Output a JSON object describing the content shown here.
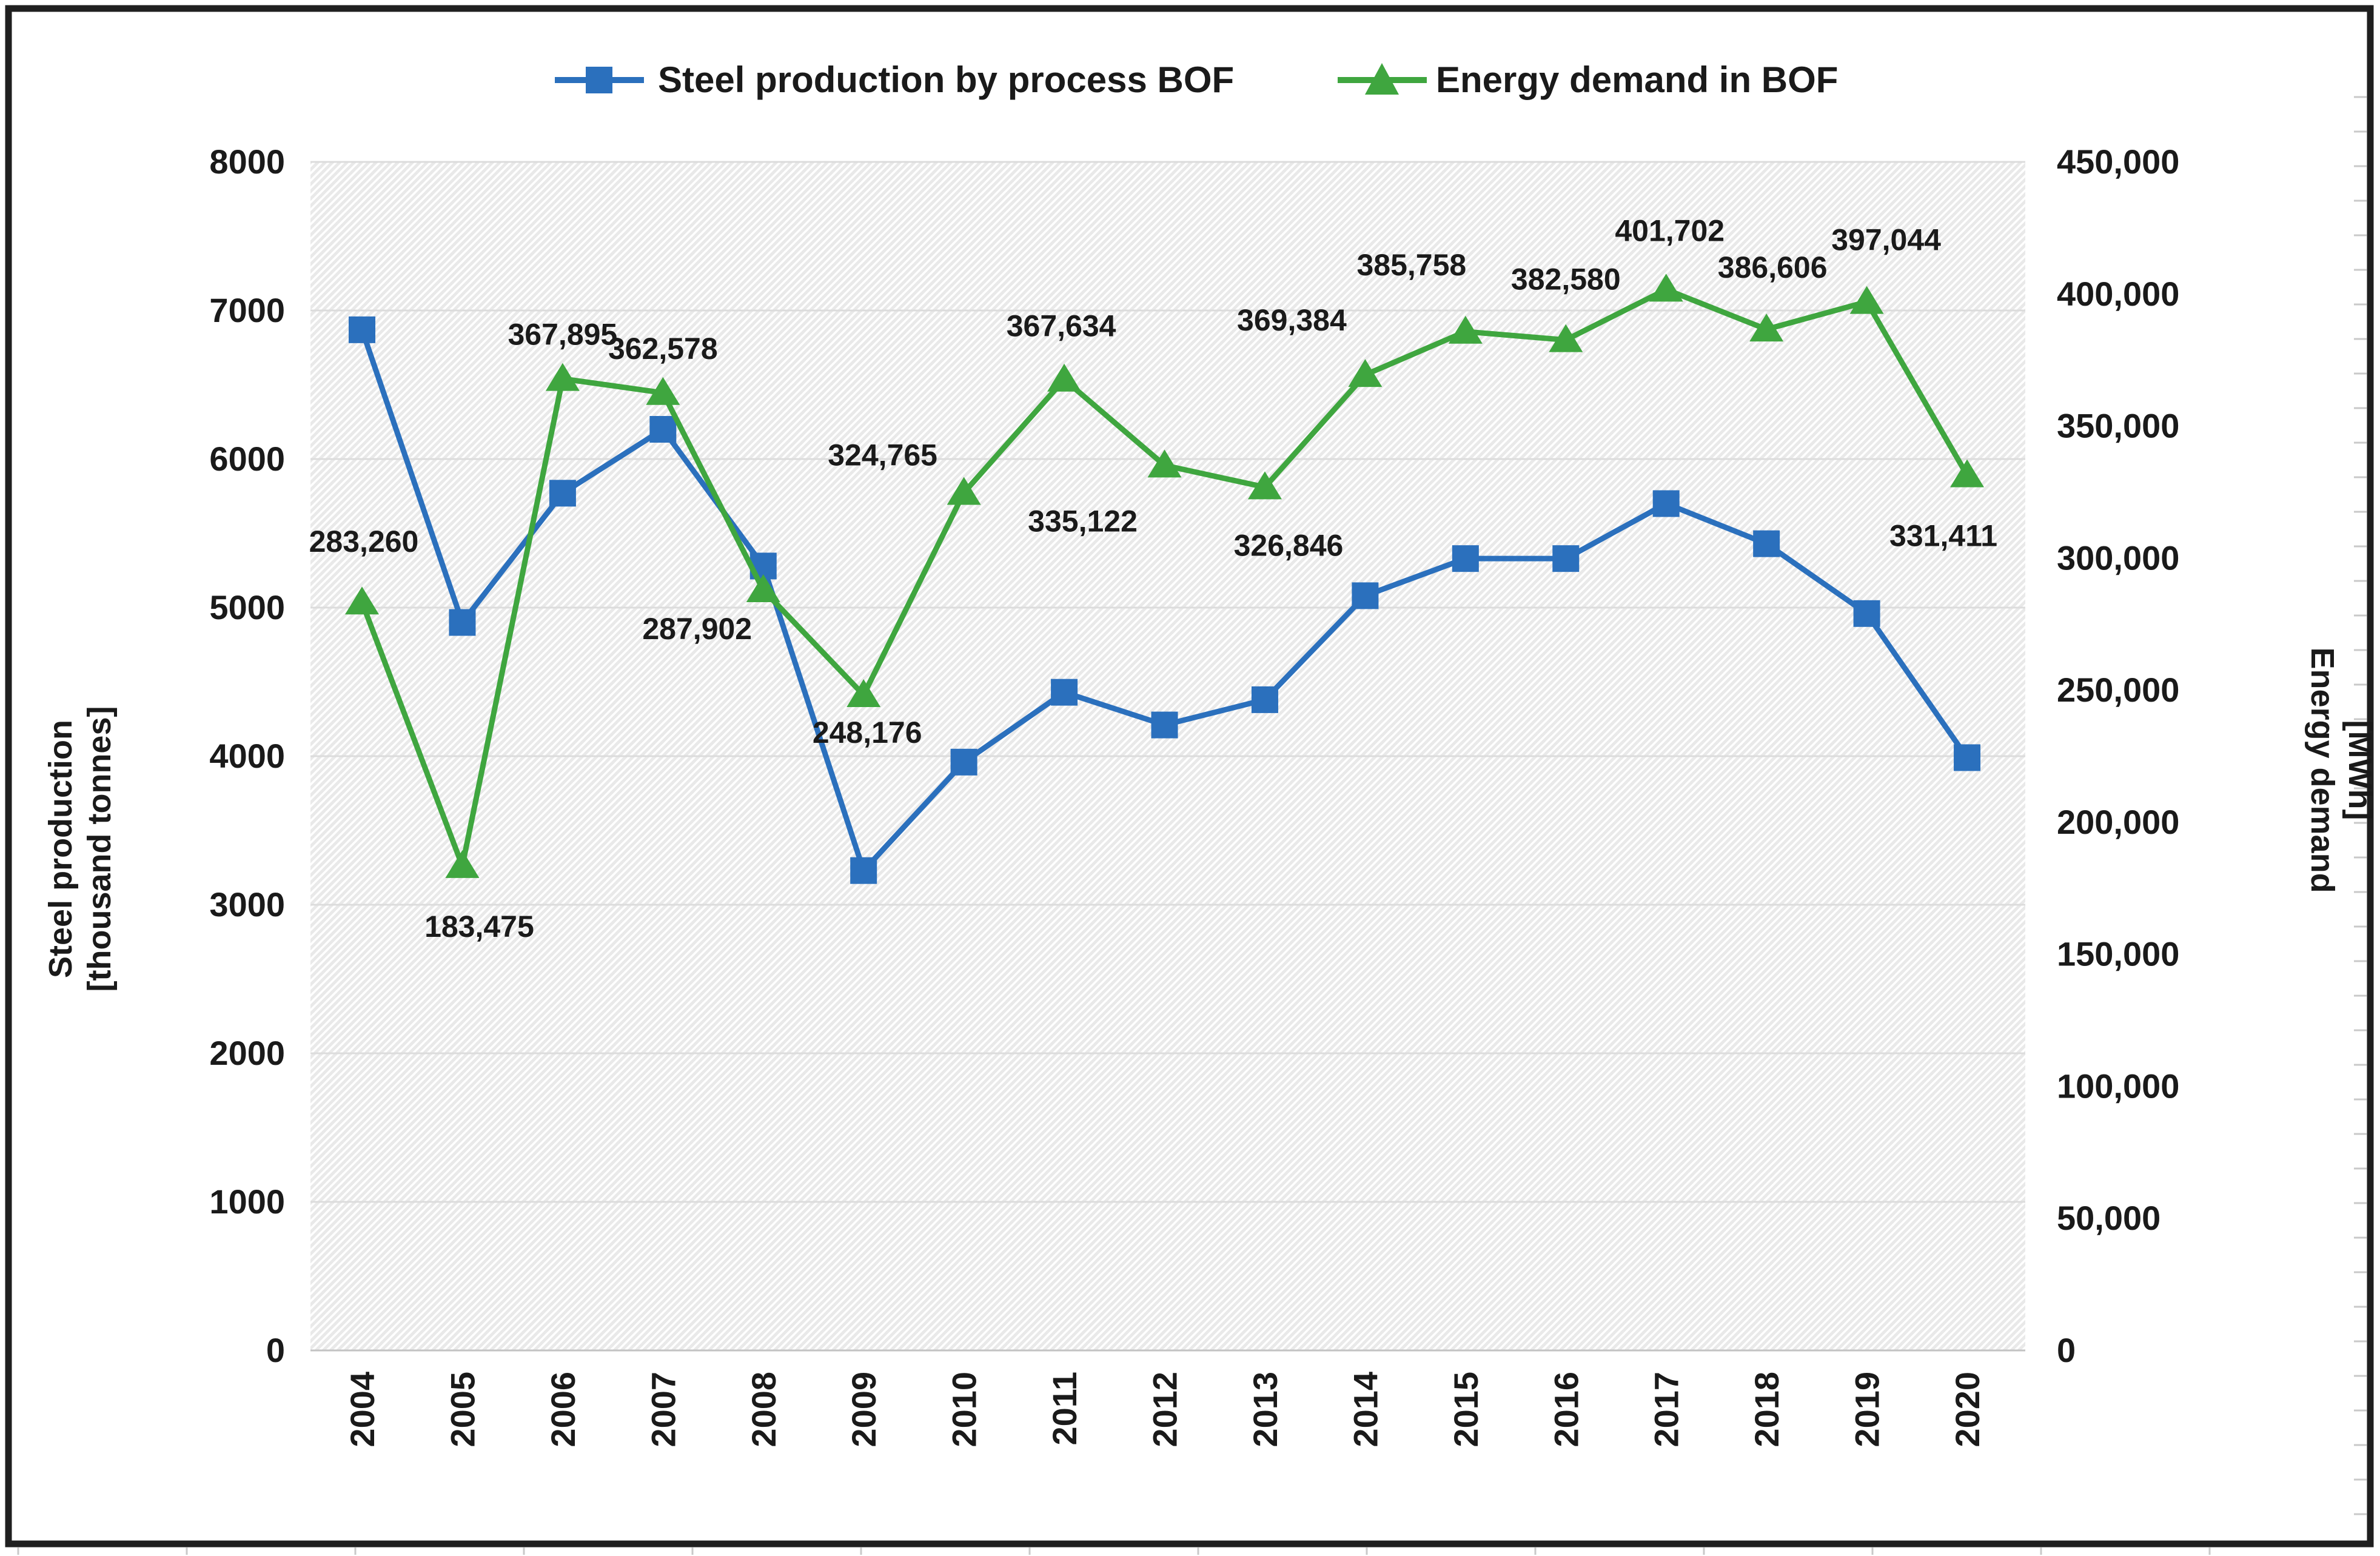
{
  "legend": {
    "items": [
      {
        "label": "Steel production by process BOF",
        "color": "#2B70BD",
        "marker": "square"
      },
      {
        "label": "Energy demand in BOF",
        "color": "#3FA63F",
        "marker": "triangle"
      }
    ]
  },
  "axes": {
    "left": {
      "title_line1": "Steel production",
      "title_line2": "[thousand tonnes]",
      "ticks": [
        "8000",
        "7000",
        "6000",
        "5000",
        "4000",
        "3000",
        "2000",
        "1000",
        "0"
      ]
    },
    "right": {
      "title_line1": "Energy demand",
      "title_line2": "[MWh]",
      "ticks": [
        "450,000",
        "400,000",
        "350,000",
        "300,000",
        "250,000",
        "200,000",
        "150,000",
        "100,000",
        "50,000",
        "0"
      ]
    },
    "x": {
      "labels": [
        "2004",
        "2005",
        "2006",
        "2007",
        "2008",
        "2009",
        "2010",
        "2011",
        "2012",
        "2013",
        "2014",
        "2015",
        "2016",
        "2017",
        "2018",
        "2019",
        "2020"
      ]
    }
  },
  "chart_data": {
    "type": "line",
    "title": "",
    "xlabel": "",
    "ylabel_left": "Steel production [thousand tonnes]",
    "ylabel_right": "Energy demand [MWh]",
    "ylim_left": [
      0,
      8000
    ],
    "ylim_right": [
      0,
      450000
    ],
    "grid": "horizontal",
    "legend_position": "top",
    "plot_background": "diagonal-hatch",
    "categories": [
      "2004",
      "2005",
      "2006",
      "2007",
      "2008",
      "2009",
      "2010",
      "2011",
      "2012",
      "2013",
      "2014",
      "2015",
      "2016",
      "2017",
      "2018",
      "2019",
      "2020"
    ],
    "series": [
      {
        "name": "Steel production by process BOF",
        "axis": "left",
        "color": "#2B70BD",
        "marker": "square",
        "values": [
          6870,
          4900,
          5770,
          6200,
          5280,
          3230,
          3960,
          4430,
          4210,
          4380,
          5080,
          5330,
          5330,
          5700,
          5430,
          4960,
          3990
        ]
      },
      {
        "name": "Energy demand in BOF",
        "axis": "right",
        "color": "#3FA63F",
        "marker": "triangle",
        "values": [
          283260,
          183475,
          367895,
          362578,
          287902,
          248176,
          324765,
          367634,
          335122,
          326846,
          369384,
          385758,
          382580,
          401702,
          386606,
          397044,
          331411
        ],
        "labels": [
          "283,260",
          "183,475",
          "367,895",
          "362,578",
          "287,902",
          "248,176",
          "324,765",
          "367,634",
          "335,122",
          "326,846",
          "369,384",
          "385,758",
          "382,580",
          "401,702",
          "386,606",
          "397,044",
          "331,411"
        ],
        "label_offsets": [
          [
            3,
            -100
          ],
          [
            28,
            100
          ],
          [
            0,
            -73
          ],
          [
            0,
            -73
          ],
          [
            -109,
            64
          ],
          [
            6,
            62
          ],
          [
            -134,
            -62
          ],
          [
            -5,
            -88
          ],
          [
            -135,
            92
          ],
          [
            39,
            96
          ],
          [
            -121,
            -90
          ],
          [
            -89,
            -110
          ],
          [
            0,
            -100
          ],
          [
            6,
            -97
          ],
          [
            10,
            -102
          ],
          [
            32,
            -102
          ],
          [
            -39,
            100
          ]
        ]
      }
    ]
  },
  "frame": {
    "border_color": "#1f1f1f",
    "grid_stub_color": "#c9c9c9",
    "gridline_color": "#dcdcdc",
    "axis_line_color": "#c3c3c3"
  }
}
